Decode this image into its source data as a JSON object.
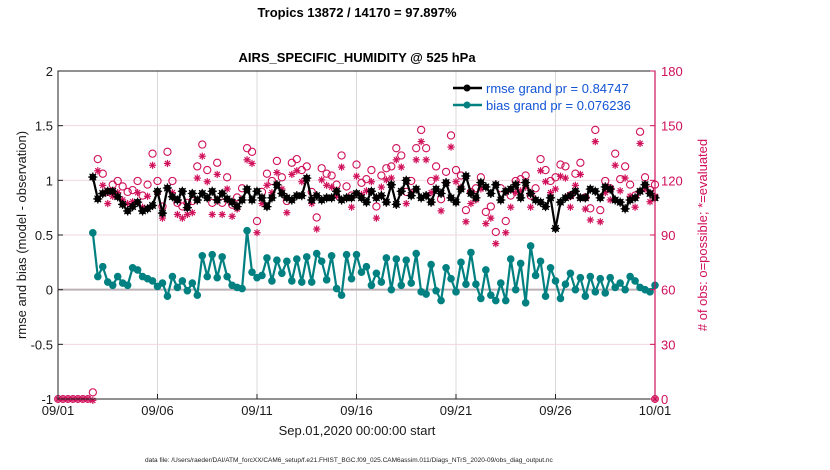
{
  "chart_data": {
    "type": "line",
    "title": "Tropics 13872 / 14170 = 97.897%",
    "subtitle": "AIRS_SPECIFIC_HUMIDITY @ 525 hPa",
    "xlabel": "Sep.01,2020 00:00:00 start",
    "ylabel": "rmse and bias (model - observation)",
    "y2label": "# of obs: o=possible; *=evaluated",
    "xlim_days": [
      0,
      30
    ],
    "ylim": [
      -1,
      2
    ],
    "y2lim": [
      0,
      180
    ],
    "x_ticks": [
      {
        "day": 0,
        "label": "09/01"
      },
      {
        "day": 5,
        "label": "09/06"
      },
      {
        "day": 10,
        "label": "09/11"
      },
      {
        "day": 15,
        "label": "09/16"
      },
      {
        "day": 20,
        "label": "09/21"
      },
      {
        "day": 25,
        "label": "09/26"
      },
      {
        "day": 30,
        "label": "10/01"
      }
    ],
    "y_ticks": [
      {
        "value": 2,
        "label": "2"
      },
      {
        "value": 1.5,
        "label": "1.5"
      },
      {
        "value": 1,
        "label": "1"
      },
      {
        "value": 0.5,
        "label": "0.5"
      },
      {
        "value": 0,
        "label": "0"
      },
      {
        "value": -0.5,
        "label": "-0.5"
      },
      {
        "value": -1,
        "label": "-1"
      }
    ],
    "y2_ticks": [
      {
        "value": 180,
        "label": "180"
      },
      {
        "value": 150,
        "label": "150"
      },
      {
        "value": 120,
        "label": "120"
      },
      {
        "value": 90,
        "label": "90"
      },
      {
        "value": 60,
        "label": "60"
      },
      {
        "value": 30,
        "label": "30"
      },
      {
        "value": 0,
        "label": "0"
      }
    ],
    "grid": true,
    "legend_position": "top-right",
    "legend": [
      {
        "name": "rmse grand pr = 0.84747",
        "color": "#000000"
      },
      {
        "name": "bias grand pr = 0.076236",
        "color": "#008080"
      }
    ],
    "x_start_day": 1.75,
    "x_step_days": 0.25,
    "series": [
      {
        "name": "rmse",
        "color": "#000000",
        "axis": "left",
        "values": [
          1.03,
          0.83,
          0.88,
          0.9,
          0.9,
          0.85,
          0.78,
          0.72,
          0.76,
          0.8,
          0.72,
          0.74,
          0.77,
          0.9,
          0.7,
          0.93,
          0.85,
          0.82,
          0.9,
          0.75,
          0.88,
          0.82,
          0.88,
          0.84,
          0.9,
          0.82,
          0.88,
          0.83,
          0.8,
          0.76,
          0.82,
          0.92,
          0.82,
          0.9,
          0.84,
          0.76,
          0.84,
          0.96,
          0.88,
          0.84,
          0.82,
          0.86,
          0.86,
          1.02,
          0.82,
          0.86,
          0.82,
          0.84,
          0.84,
          0.9,
          0.82,
          0.84,
          0.84,
          0.88,
          0.84,
          0.8,
          0.9,
          0.84,
          0.86,
          0.8,
          0.96,
          0.78,
          0.9,
          1.0,
          0.86,
          0.92,
          0.84,
          0.86,
          0.8,
          0.92,
          0.88,
          0.98,
          0.84,
          0.8,
          0.92,
          1.04,
          0.88,
          0.84,
          0.98,
          0.94,
          0.88,
          0.96,
          0.82,
          0.9,
          0.92,
          0.96,
          0.84,
          0.98,
          0.88,
          0.82,
          0.8,
          0.76,
          0.84,
          0.56,
          0.8,
          0.84,
          0.86,
          0.9,
          0.84,
          0.84,
          0.92,
          0.9,
          0.84,
          0.94,
          0.92,
          0.82,
          0.8,
          0.74,
          0.82,
          0.84,
          0.9,
          0.96,
          0.88,
          0.84,
          0.92,
          1.0,
          0.82,
          0.88,
          1.0,
          1.12,
          0.86,
          0.88,
          0.84,
          0.82,
          0.78,
          0.84,
          0.86,
          0.88,
          0.94,
          0.9,
          0.8,
          0.86,
          0.92,
          0.8,
          0.76,
          0.9,
          0.8,
          0.86,
          0.84,
          0.8,
          0.78,
          0.8,
          0.8,
          0.84,
          0.82,
          0.9,
          0.86,
          0.84,
          0.8,
          0.92,
          0.8,
          0.86,
          0.84,
          0.9,
          0.82,
          0.78,
          0.86,
          0.78,
          0.84,
          0.76,
          0.84,
          0.8,
          0.82,
          0.86,
          0.84,
          0.8,
          0.76,
          0.86,
          0.78,
          0.88,
          0.84,
          0.82
        ]
      },
      {
        "name": "bias",
        "color": "#008080",
        "axis": "left",
        "values": [
          0.52,
          0.12,
          0.21,
          0.07,
          0.04,
          0.12,
          0.06,
          0.04,
          0.2,
          0.18,
          0.12,
          0.1,
          0.08,
          0.03,
          0.06,
          -0.06,
          0.12,
          0.02,
          0.08,
          -0.01,
          0.06,
          -0.05,
          0.31,
          0.12,
          0.32,
          0.11,
          0.3,
          0.12,
          0.04,
          0.02,
          0.01,
          0.54,
          0.16,
          0.11,
          0.13,
          0.29,
          0.08,
          0.27,
          0.15,
          0.26,
          0.08,
          0.28,
          0.07,
          0.3,
          0.07,
          0.33,
          0.26,
          0.09,
          0.31,
          0.01,
          -0.05,
          0.32,
          0.1,
          0.32,
          0.16,
          0.21,
          0.04,
          0.15,
          0.07,
          0.29,
          0.0,
          0.28,
          0.04,
          0.27,
          0.06,
          0.33,
          -0.02,
          -0.04,
          0.23,
          -0.01,
          -0.1,
          0.2,
          0.1,
          -0.02,
          0.25,
          0.05,
          0.34,
          0.05,
          -0.08,
          0.18,
          -0.05,
          -0.1,
          0.06,
          -0.1,
          0.28,
          0.0,
          0.24,
          -0.12,
          0.4,
          0.13,
          0.26,
          -0.06,
          0.2,
          0.08,
          -0.08,
          0.05,
          0.15,
          0.0,
          0.11,
          -0.06,
          0.12,
          -0.02,
          0.1,
          -0.03,
          0.11,
          0.02,
          0.06,
          0.0,
          0.12,
          0.08,
          0.02,
          0.0,
          -0.02,
          0.04,
          0.14,
          -0.03,
          -0.09,
          0.13,
          0.05,
          -0.03,
          0.16,
          -0.02,
          0.12,
          -0.06,
          -0.12,
          0.08,
          -0.02,
          0.06,
          0.02,
          0.0,
          0.16,
          -0.06,
          0.12,
          -0.02,
          -0.08,
          0.12,
          0.01,
          0.1,
          0.04,
          0.05,
          0.0,
          -0.1,
          0.04,
          0.08,
          -0.02,
          0.06,
          0.02,
          0.1,
          0.08,
          0.14,
          0.22,
          0.12,
          0.06,
          0.16,
          0.25,
          0.16,
          0.1,
          0.04,
          0.02,
          -0.04,
          0.04,
          0.06,
          0.0,
          0.04,
          0.06,
          -0.02,
          0.02,
          0.06,
          -0.02,
          0.02,
          0.08,
          -0.03,
          0.04,
          -0.01,
          0.04,
          0.12
        ]
      }
    ],
    "obs_possible": {
      "symbol": "o",
      "color": "#d0105a",
      "axis": "right",
      "values": [
        2,
        130,
        122,
        112,
        116,
        118,
        115,
        112,
        113,
        118,
        110,
        116,
        133,
        118,
        104,
        134,
        118,
        106,
        104,
        106,
        107,
        126,
        138,
        124,
        106,
        128,
        106,
        120,
        105,
        109,
        114,
        136,
        134,
        96,
        112,
        122,
        118,
        129,
        120,
        107,
        128,
        130,
        124,
        126,
        112,
        98,
        125,
        122,
        121,
        116,
        132,
        115,
        110,
        127,
        117,
        119,
        124,
        104,
        121,
        125,
        126,
        136,
        132,
        112,
        118,
        136,
        146,
        136,
        118,
        126,
        108,
        123,
        143,
        124,
        121,
        102,
        112,
        114,
        120,
        101,
        104,
        90,
        114,
        96,
        110,
        118,
        119,
        121,
        110,
        114,
        130,
        124,
        118,
        120,
        127,
        126,
        110,
        122,
        128,
        109,
        103,
        146,
        102,
        118,
        114,
        133,
        119,
        126,
        116,
        110,
        145,
        120,
        113,
        116,
        128,
        130,
        124,
        112,
        118,
        121,
        129,
        128,
        126,
        122,
        104,
        107,
        116,
        135,
        116,
        118,
        114,
        102,
        110,
        108,
        123,
        118,
        128,
        104,
        112,
        140,
        118,
        116,
        116,
        128,
        126,
        106,
        128,
        110,
        114,
        118,
        124,
        130,
        130,
        131,
        128,
        124,
        116,
        110,
        116,
        144,
        140,
        108,
        96,
        102,
        112,
        110,
        108,
        131,
        119,
        130,
        131,
        118,
        112,
        110,
        118,
        124,
        130,
        132,
        115
      ]
    },
    "obs_evaluated": {
      "symbol": "*",
      "color": "#d0105a",
      "axis": "right",
      "values": [
        2,
        128,
        120,
        110,
        114,
        116,
        112,
        110,
        111,
        116,
        108,
        114,
        131,
        116,
        102,
        132,
        116,
        104,
        102,
        104,
        105,
        124,
        136,
        122,
        104,
        126,
        104,
        118,
        103,
        107,
        112,
        134,
        132,
        94,
        110,
        120,
        116,
        127,
        118,
        105,
        126,
        128,
        122,
        124,
        110,
        96,
        123,
        120,
        119,
        114,
        130,
        113,
        108,
        125,
        115,
        117,
        122,
        102,
        119,
        123,
        124,
        134,
        130,
        110,
        116,
        134,
        144,
        134,
        116,
        124,
        106,
        121,
        141,
        122,
        119,
        100,
        110,
        112,
        118,
        99,
        102,
        88,
        112,
        94,
        108,
        116,
        117,
        119,
        108,
        112,
        128,
        122,
        116,
        118,
        125,
        124,
        108,
        120,
        126,
        107,
        101,
        144,
        100,
        116,
        112,
        131,
        117,
        124,
        114,
        108,
        143,
        118,
        111,
        114,
        126,
        128,
        122,
        110,
        116,
        119,
        127,
        126,
        124,
        120,
        102,
        105,
        114,
        133,
        114,
        116,
        112,
        100,
        108,
        106,
        121,
        116,
        126,
        102,
        110,
        138,
        116,
        114,
        114,
        126,
        124,
        104,
        126,
        108,
        112,
        116,
        122,
        128,
        128,
        129,
        126,
        122,
        114,
        108,
        114,
        142,
        138,
        106,
        94,
        100,
        110,
        108,
        106,
        129,
        117,
        128,
        129,
        116,
        110,
        108,
        116,
        122,
        128,
        130,
        113
      ]
    },
    "obs_zero_days": [
      0.0,
      0.25,
      0.5,
      0.75,
      1.0,
      1.25,
      1.5
    ],
    "obs_end_day": 30
  },
  "footer": {
    "data_file": "data file: /Users/raeder/DAI/ATM_forcXX/CAM6_setup/f.e21.FHIST_BGC.f09_025.CAM6assim.011/Diags_NTrS_2020-09/obs_diag_output.nc"
  }
}
